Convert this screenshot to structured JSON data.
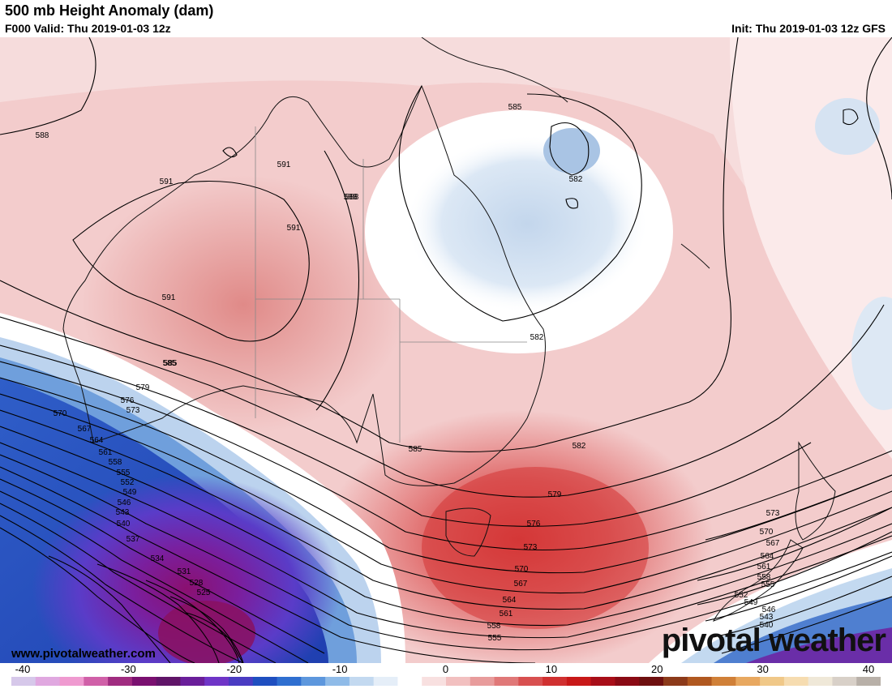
{
  "header": {
    "title": "500 mb Height Anomaly (dam)",
    "valid": "F000 Valid: Thu 2019-01-03 12z",
    "init": "Init: Thu 2019-01-03 12z GFS"
  },
  "contour_labels": [
    "588",
    "591",
    "591",
    "588",
    "591",
    "591",
    "585",
    "585",
    "582",
    "582",
    "579",
    "576",
    "573",
    "570",
    "567",
    "564",
    "561",
    "558",
    "555",
    "552",
    "549",
    "546",
    "543",
    "540",
    "537",
    "534",
    "531",
    "528",
    "525",
    "588",
    "585",
    "585",
    "582",
    "579",
    "576",
    "573",
    "570",
    "567",
    "564",
    "561",
    "558",
    "555",
    "573",
    "570",
    "567",
    "564",
    "561",
    "558",
    "555",
    "552",
    "549",
    "546",
    "543",
    "540"
  ],
  "colorbar": {
    "ticks": [
      "-40",
      "-30",
      "-20",
      "-10",
      "0",
      "10",
      "20",
      "30",
      "40"
    ],
    "colors": [
      "#d6c8ea",
      "#e0a8e0",
      "#ef9ad0",
      "#d060a8",
      "#a02c80",
      "#7a1070",
      "#601468",
      "#6a1e9a",
      "#6f35c7",
      "#4a3cc2",
      "#1f4fc0",
      "#2f6fd0",
      "#5d97dd",
      "#8fbbe8",
      "#c3d9f0",
      "#e5eef8",
      "#ffffff",
      "#f8e0e0",
      "#f2c0c0",
      "#e89c9c",
      "#e07878",
      "#d85050",
      "#d03030",
      "#c81818",
      "#a80e18",
      "#8a0a14",
      "#6e1010",
      "#8c3a1a",
      "#b05820",
      "#d08038",
      "#e8a860",
      "#f0c888",
      "#f6dcb0",
      "#efe8d8",
      "#d8d0c8",
      "#b8b0a8"
    ]
  },
  "footer": {
    "website": "www.pivotalweather.com",
    "logo_text": "pivotal weather"
  }
}
